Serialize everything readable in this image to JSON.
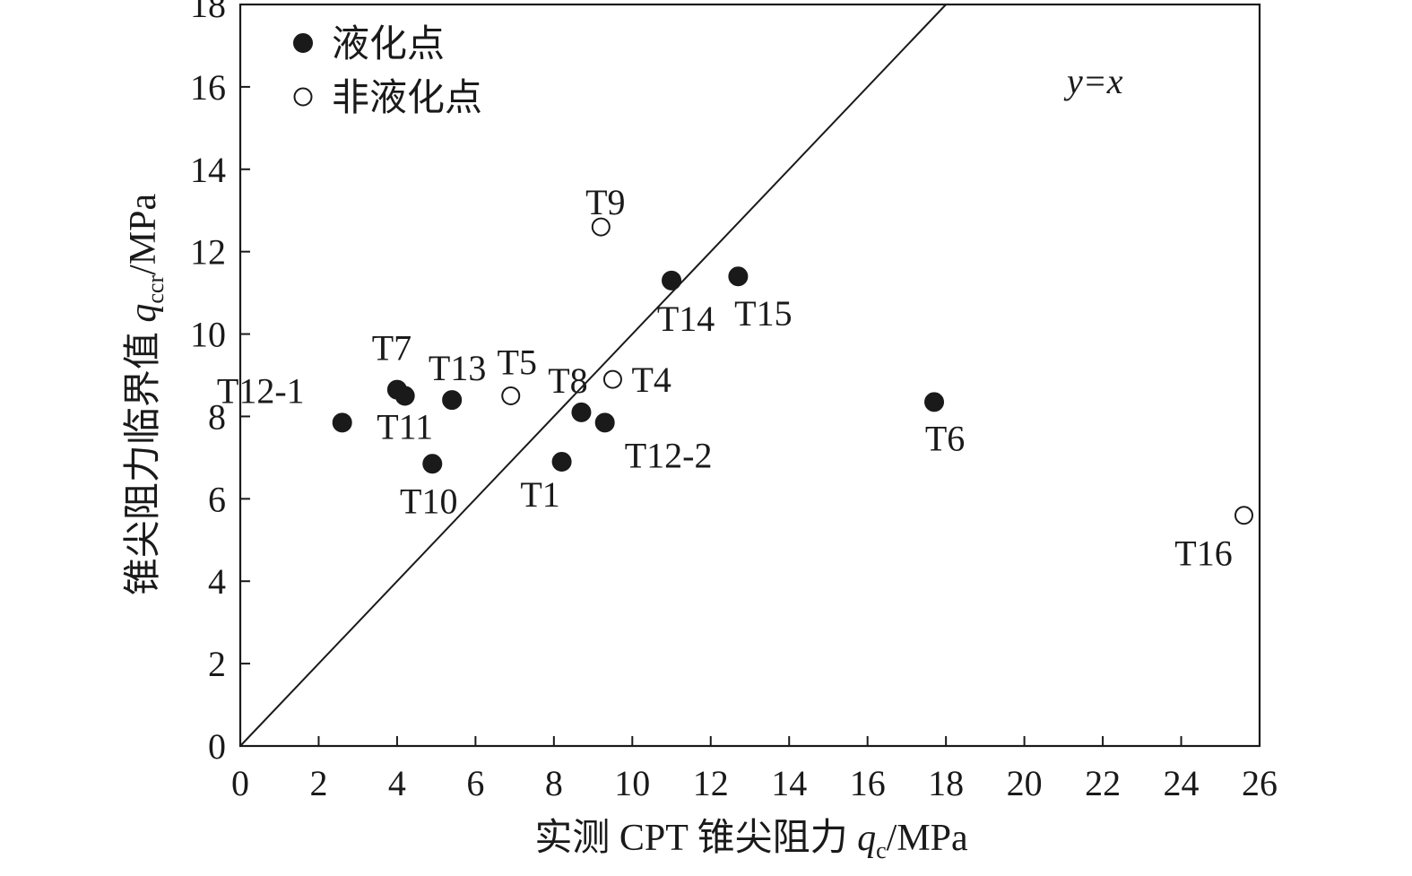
{
  "chart_data": {
    "type": "scatter",
    "title": "",
    "xlim": [
      0,
      26
    ],
    "ylim": [
      0,
      18
    ],
    "x_ticks": [
      0,
      2,
      4,
      6,
      8,
      10,
      12,
      14,
      16,
      18,
      20,
      22,
      24,
      26
    ],
    "y_ticks": [
      0,
      2,
      4,
      6,
      8,
      10,
      12,
      14,
      16,
      18
    ],
    "x_ticks_label": [
      "0",
      "2",
      "4",
      "6",
      "8",
      "10",
      "12",
      "14",
      "16",
      "18",
      "20",
      "22",
      "24",
      "26"
    ],
    "y_ticks_label": [
      "0",
      "2",
      "4",
      "6",
      "8",
      "10",
      "12",
      "14",
      "16",
      "18"
    ],
    "xlabel": {
      "prefix": "实测 CPT 锥尖阻力 ",
      "symbol": "q",
      "sub": "c",
      "unit": "/MPa"
    },
    "ylabel": {
      "prefix": "锥尖阻力临界值 ",
      "symbol": "q",
      "sub": "ccr",
      "unit": "/MPa"
    },
    "grid": false,
    "legend_position": "top-left",
    "reference_line": {
      "label": "y=x",
      "from": [
        0,
        0
      ],
      "to": [
        18,
        18
      ]
    },
    "series": [
      {
        "name": "液化点",
        "marker": "filled-circle",
        "color": "#1a1a1a",
        "points": [
          {
            "label": "T12-1",
            "x": 2.6,
            "y": 7.85
          },
          {
            "label": "T7",
            "x": 4.0,
            "y": 8.65
          },
          {
            "label": "T11",
            "x": 4.2,
            "y": 8.5
          },
          {
            "label": "T10",
            "x": 4.9,
            "y": 6.85
          },
          {
            "label": "T13",
            "x": 5.4,
            "y": 8.4
          },
          {
            "label": "T1",
            "x": 8.2,
            "y": 6.9
          },
          {
            "label": "T8",
            "x": 8.7,
            "y": 8.1
          },
          {
            "label": "T12-2",
            "x": 9.3,
            "y": 7.85
          },
          {
            "label": "T14",
            "x": 11.0,
            "y": 11.3
          },
          {
            "label": "T15",
            "x": 12.7,
            "y": 11.4
          },
          {
            "label": "T6",
            "x": 17.7,
            "y": 8.35
          }
        ]
      },
      {
        "name": "非液化点",
        "marker": "open-circle",
        "color": "#1a1a1a",
        "points": [
          {
            "label": "T5",
            "x": 6.9,
            "y": 8.5
          },
          {
            "label": "T4",
            "x": 9.5,
            "y": 8.9
          },
          {
            "label": "T9",
            "x": 9.2,
            "y": 12.6
          },
          {
            "label": "T16",
            "x": 25.6,
            "y": 5.6
          }
        ]
      }
    ]
  }
}
